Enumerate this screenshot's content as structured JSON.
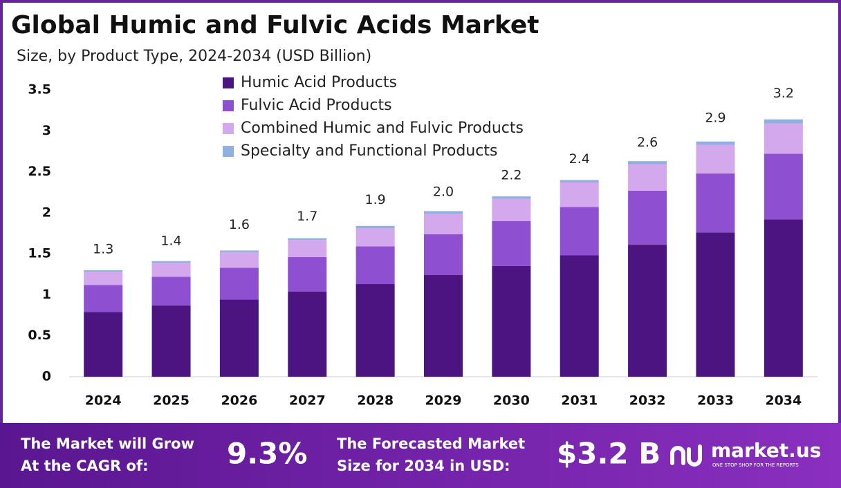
{
  "chart_data": {
    "type": "stacked-bar",
    "title": "Global Humic and Fulvic Acids Market",
    "subtitle": "Size, by Product Type, 2024-2034 (USD Billion)",
    "categories": [
      "2024",
      "2025",
      "2026",
      "2027",
      "2028",
      "2029",
      "2030",
      "2031",
      "2032",
      "2033",
      "2034"
    ],
    "series": [
      {
        "name": "Humic Acid Products",
        "color": "#4b1480",
        "values": [
          0.79,
          0.87,
          0.94,
          1.04,
          1.13,
          1.24,
          1.35,
          1.48,
          1.61,
          1.76,
          1.92
        ]
      },
      {
        "name": "Fulvic Acid Products",
        "color": "#8e4fd0",
        "values": [
          0.33,
          0.35,
          0.39,
          0.42,
          0.46,
          0.5,
          0.55,
          0.59,
          0.66,
          0.72,
          0.8
        ]
      },
      {
        "name": "Combined Humic and Fulvic Products",
        "color": "#d4a8ec",
        "values": [
          0.16,
          0.17,
          0.19,
          0.21,
          0.22,
          0.25,
          0.27,
          0.3,
          0.32,
          0.35,
          0.37
        ]
      },
      {
        "name": "Specialty and Functional Products",
        "color": "#8fb0e0",
        "values": [
          0.02,
          0.02,
          0.02,
          0.02,
          0.03,
          0.03,
          0.03,
          0.03,
          0.04,
          0.04,
          0.05
        ]
      }
    ],
    "totals": {
      "values": [
        1.3,
        1.4,
        1.6,
        1.7,
        1.9,
        2.0,
        2.2,
        2.4,
        2.6,
        2.9,
        3.2
      ],
      "value_labels": [
        "1.3",
        "1.4",
        "1.6",
        "1.7",
        "1.9",
        "2.0",
        "2.2",
        "2.4",
        "2.6",
        "2.9",
        "3.2"
      ]
    },
    "ylim": [
      0,
      3.5
    ],
    "yticks": [
      0,
      0.5,
      1,
      1.5,
      2,
      2.5,
      3,
      3.5
    ],
    "grid": false
  },
  "footer": {
    "cagr_text": [
      "The Market will Grow",
      "At the CAGR of:"
    ],
    "cagr_value": "9.3%",
    "size_text": [
      "The Forecasted Market",
      "Size for 2034 in USD:"
    ],
    "size_value": "$3.2 B",
    "brand": "market.us",
    "tagline": "ONE STOP SHOP FOR THE REPORTS"
  }
}
